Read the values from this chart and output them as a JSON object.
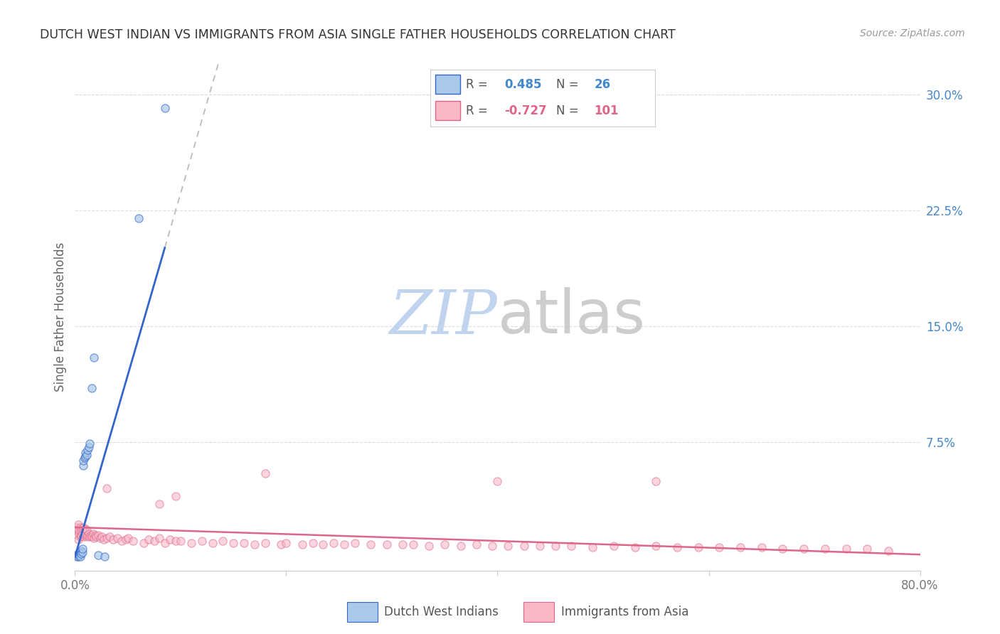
{
  "title": "DUTCH WEST INDIAN VS IMMIGRANTS FROM ASIA SINGLE FATHER HOUSEHOLDS CORRELATION CHART",
  "source": "Source: ZipAtlas.com",
  "ylabel": "Single Father Households",
  "xlim": [
    0.0,
    0.8
  ],
  "ylim": [
    -0.008,
    0.32
  ],
  "blue_R": 0.485,
  "blue_N": 26,
  "pink_R": -0.727,
  "pink_N": 101,
  "blue_scatter_color": "#aac8e8",
  "blue_line_color": "#3366cc",
  "pink_scatter_color": "#f8b8c8",
  "pink_line_color": "#dd6688",
  "dashed_line_color": "#bbbbbb",
  "title_color": "#333333",
  "right_tick_color": "#4488cc",
  "source_color": "#999999",
  "background_color": "#ffffff",
  "grid_color": "#dddddd",
  "watermark_zip_color": "#c0d4f0",
  "watermark_atlas_color": "#c8c8c8",
  "blue_slope": 2.35,
  "blue_intercept": 0.001,
  "pink_slope": -0.022,
  "pink_intercept": 0.02,
  "blue_scatter_x": [
    0.001,
    0.002,
    0.003,
    0.003,
    0.004,
    0.005,
    0.005,
    0.006,
    0.006,
    0.007,
    0.007,
    0.008,
    0.008,
    0.009,
    0.01,
    0.01,
    0.011,
    0.012,
    0.013,
    0.014,
    0.016,
    0.018,
    0.022,
    0.028,
    0.06,
    0.085
  ],
  "blue_scatter_y": [
    0.002,
    0.001,
    0.003,
    0.001,
    0.002,
    0.004,
    0.001,
    0.005,
    0.003,
    0.004,
    0.006,
    0.06,
    0.063,
    0.065,
    0.066,
    0.068,
    0.067,
    0.07,
    0.072,
    0.074,
    0.11,
    0.13,
    0.002,
    0.001,
    0.22,
    0.291
  ],
  "pink_scatter_x": [
    0.001,
    0.002,
    0.002,
    0.003,
    0.003,
    0.004,
    0.004,
    0.005,
    0.005,
    0.006,
    0.006,
    0.007,
    0.007,
    0.008,
    0.008,
    0.009,
    0.009,
    0.01,
    0.01,
    0.011,
    0.011,
    0.012,
    0.013,
    0.014,
    0.015,
    0.016,
    0.017,
    0.018,
    0.019,
    0.02,
    0.022,
    0.024,
    0.025,
    0.027,
    0.03,
    0.033,
    0.036,
    0.04,
    0.044,
    0.048,
    0.05,
    0.055,
    0.03,
    0.065,
    0.07,
    0.075,
    0.08,
    0.085,
    0.09,
    0.095,
    0.1,
    0.11,
    0.12,
    0.13,
    0.14,
    0.15,
    0.16,
    0.17,
    0.18,
    0.195,
    0.2,
    0.215,
    0.225,
    0.235,
    0.245,
    0.255,
    0.265,
    0.28,
    0.295,
    0.31,
    0.32,
    0.335,
    0.35,
    0.365,
    0.38,
    0.395,
    0.41,
    0.425,
    0.44,
    0.455,
    0.47,
    0.49,
    0.51,
    0.53,
    0.55,
    0.57,
    0.59,
    0.61,
    0.63,
    0.65,
    0.67,
    0.69,
    0.71,
    0.73,
    0.75,
    0.77,
    0.08,
    0.095,
    0.4,
    0.55,
    0.18
  ],
  "pink_scatter_y": [
    0.018,
    0.015,
    0.02,
    0.012,
    0.022,
    0.016,
    0.018,
    0.014,
    0.02,
    0.015,
    0.018,
    0.016,
    0.019,
    0.014,
    0.02,
    0.015,
    0.018,
    0.016,
    0.019,
    0.014,
    0.018,
    0.015,
    0.016,
    0.014,
    0.015,
    0.014,
    0.016,
    0.013,
    0.015,
    0.014,
    0.015,
    0.013,
    0.014,
    0.012,
    0.013,
    0.014,
    0.012,
    0.013,
    0.011,
    0.012,
    0.013,
    0.011,
    0.045,
    0.01,
    0.012,
    0.011,
    0.013,
    0.01,
    0.012,
    0.011,
    0.011,
    0.01,
    0.011,
    0.01,
    0.011,
    0.01,
    0.01,
    0.009,
    0.01,
    0.009,
    0.01,
    0.009,
    0.01,
    0.009,
    0.01,
    0.009,
    0.01,
    0.009,
    0.009,
    0.009,
    0.009,
    0.008,
    0.009,
    0.008,
    0.009,
    0.008,
    0.008,
    0.008,
    0.008,
    0.008,
    0.008,
    0.007,
    0.008,
    0.007,
    0.008,
    0.007,
    0.007,
    0.007,
    0.007,
    0.007,
    0.006,
    0.006,
    0.006,
    0.006,
    0.006,
    0.005,
    0.035,
    0.04,
    0.05,
    0.05,
    0.055
  ]
}
